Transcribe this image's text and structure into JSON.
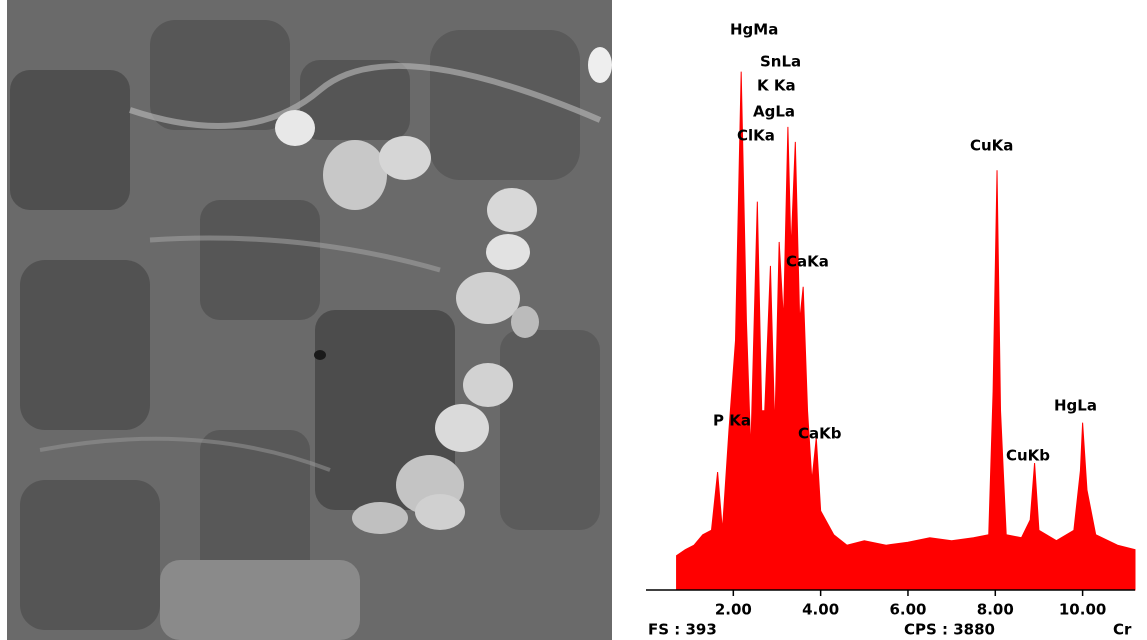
{
  "chart_data": {
    "type": "spectrum",
    "color": "#ff0000",
    "x": [
      0.7,
      0.9,
      1.1,
      1.3,
      1.5,
      1.64,
      1.75,
      1.9,
      2.05,
      2.18,
      2.3,
      2.4,
      2.55,
      2.65,
      2.72,
      2.85,
      2.95,
      3.05,
      3.15,
      3.25,
      3.32,
      3.42,
      3.52,
      3.6,
      3.7,
      3.8,
      3.9,
      4.0,
      4.3,
      4.6,
      5.0,
      5.5,
      6.0,
      6.5,
      7.0,
      7.5,
      7.85,
      7.95,
      8.04,
      8.12,
      8.25,
      8.6,
      8.8,
      8.9,
      9.0,
      9.4,
      9.8,
      9.95,
      10.0,
      10.1,
      10.3,
      10.8,
      11.2
    ],
    "values": [
      23,
      27,
      30,
      37,
      40,
      79,
      40,
      107,
      167,
      347,
      180,
      93,
      260,
      120,
      120,
      217,
      107,
      233,
      180,
      310,
      227,
      300,
      180,
      203,
      120,
      73,
      102,
      53,
      37,
      30,
      33,
      30,
      32,
      35,
      33,
      35,
      37,
      133,
      281,
      120,
      37,
      35,
      47,
      85,
      40,
      33,
      40,
      80,
      112,
      67,
      37,
      30,
      27
    ],
    "xlim": [
      0,
      11.2
    ],
    "ylim": [
      0,
      393
    ],
    "xticks": [
      {
        "value": 2,
        "label": "2.00"
      },
      {
        "value": 4,
        "label": "4.00"
      },
      {
        "value": 6,
        "label": "6.00"
      },
      {
        "value": 8,
        "label": "8.00"
      },
      {
        "value": 10,
        "label": "10.00"
      }
    ],
    "annotations": [
      "HgMa",
      "SnLa",
      "K Ka",
      "AgLa",
      "ClKa",
      "CaKa",
      "P Ka",
      "CaKb",
      "CuKa",
      "CuKb",
      "HgLa"
    ],
    "footer": [
      "FS : 393",
      "CPS : 3880",
      "Cr"
    ]
  }
}
